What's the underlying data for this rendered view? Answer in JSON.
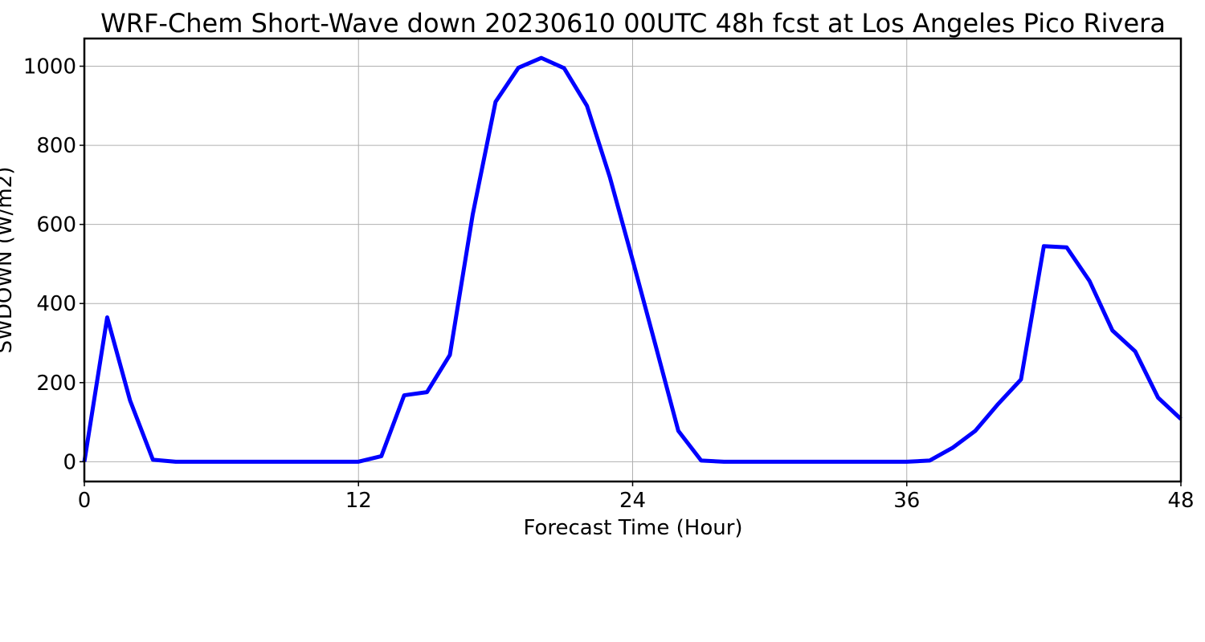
{
  "chart_data": {
    "type": "line",
    "title": "WRF-Chem Short-Wave down  20230610 00UTC 48h fcst at Los Angeles Pico Rivera",
    "xlabel": "Forecast Time (Hour)",
    "ylabel": "SWDOWN  (W/m2)",
    "xlim": [
      0,
      48
    ],
    "ylim": [
      -50,
      1070
    ],
    "xticks": [
      0,
      12,
      24,
      36,
      48
    ],
    "yticks": [
      0,
      200,
      400,
      600,
      800,
      1000
    ],
    "grid": true,
    "series": [
      {
        "color": "#0000ff",
        "x": [
          0,
          1,
          2,
          3,
          4,
          5,
          6,
          7,
          8,
          9,
          10,
          11,
          12,
          13,
          14,
          15,
          16,
          17,
          18,
          19,
          20,
          21,
          22,
          23,
          24,
          25,
          26,
          27,
          28,
          29,
          30,
          31,
          32,
          33,
          34,
          35,
          36,
          37,
          38,
          39,
          40,
          41,
          42,
          43,
          44,
          45,
          46,
          47,
          48
        ],
        "values": [
          0,
          365,
          155,
          5,
          0,
          0,
          0,
          0,
          0,
          0,
          0,
          0,
          0,
          14,
          168,
          176,
          270,
          625,
          910,
          996,
          1021,
          995,
          900,
          720,
          510,
          295,
          78,
          3,
          0,
          0,
          0,
          0,
          0,
          0,
          0,
          0,
          0,
          3,
          35,
          78,
          146,
          208,
          545,
          542,
          457,
          332,
          279,
          162,
          108
        ]
      }
    ]
  }
}
